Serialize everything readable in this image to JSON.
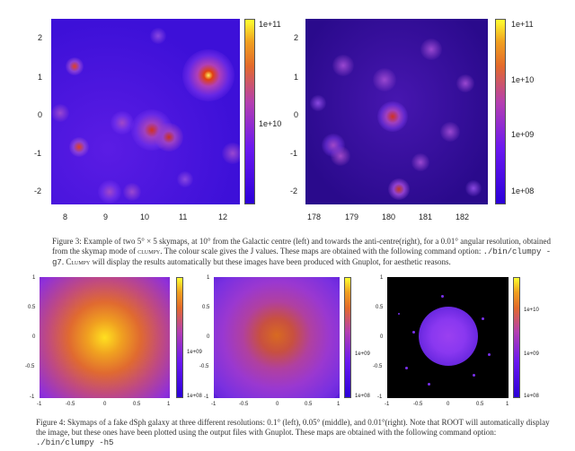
{
  "figure3": {
    "left": {
      "yticks": [
        "2",
        "1",
        "0",
        "-1",
        "-2"
      ],
      "xticks": [
        "8",
        "9",
        "10",
        "11",
        "12"
      ],
      "cbticks": [
        "1e+11",
        "1e+10"
      ]
    },
    "right": {
      "yticks": [
        "2",
        "1",
        "0",
        "-1",
        "-2"
      ],
      "xticks": [
        "178",
        "179",
        "180",
        "181",
        "182"
      ],
      "cbticks": [
        "1e+11",
        "1e+10",
        "1e+09",
        "1e+08"
      ]
    },
    "caption": {
      "p1": "Figure 3: Example of two 5° × 5 skymaps, at 10° from the Galactic centre (left) and towards the anti-centre(right), for a 0.01° angular resolution, obtained from the skymap mode of",
      "clumpy1": "clumpy",
      "p2": ". The colour scale gives the J values. These maps are obtained with the following command option:",
      "cmd": "./bin/clumpy -g7",
      "p3": ".",
      "clumpy2": "Clumpy",
      "p4": "will display the results automatically but these images have been produced with Gnuplot, for aesthetic reasons."
    }
  },
  "figure4": {
    "panels": [
      {
        "yticks": [
          "1",
          "0.5",
          "0",
          "-0.5",
          "-1"
        ],
        "xticks": [
          "-1",
          "-0.5",
          "0",
          "0.5",
          "1"
        ],
        "cbticks": [
          "1e+09",
          "1e+08"
        ]
      },
      {
        "yticks": [
          "1",
          "0.5",
          "0",
          "-0.5",
          "-1"
        ],
        "xticks": [
          "-1",
          "-0.5",
          "0",
          "0.5",
          "1"
        ],
        "cbticks": [
          "1e+09",
          "1e+08"
        ]
      },
      {
        "yticks": [
          "1",
          "0.5",
          "0",
          "-0.5",
          "-1"
        ],
        "xticks": [
          "-1",
          "-0.5",
          "0",
          "0.5",
          "1"
        ],
        "cbticks": [
          "1e+10",
          "1e+09",
          "1e+08"
        ]
      }
    ],
    "caption": {
      "p1": "Figure 4: Skymaps of a fake dSph galaxy at three different resolutions: 0.1° (left), 0.05° (middle), and 0.01°(right). Note that ROOT will automatically display the image, but these ones have been plotted using the output files with Gnuplot. These maps are obtained with the following command option:",
      "cmd": "./bin/clumpy -h5"
    }
  }
}
